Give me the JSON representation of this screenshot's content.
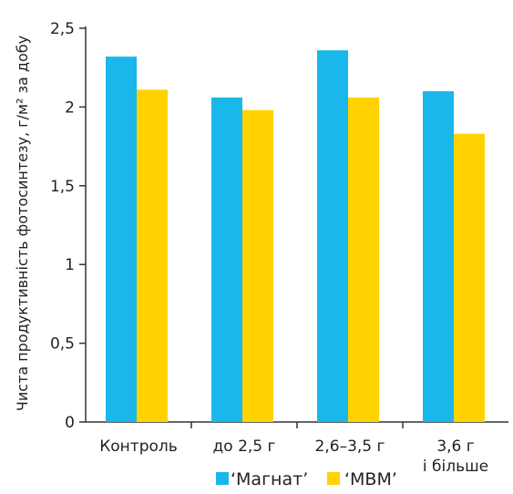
{
  "chart_data": {
    "type": "bar",
    "categories": [
      "Контроль",
      "до 2,5 г",
      "2,6–3,5 г",
      "3,6 г\nі більше"
    ],
    "series": [
      {
        "name": "‘Магнат’",
        "values": [
          2.32,
          2.06,
          2.36,
          2.1
        ],
        "color": "#1ab7ea"
      },
      {
        "name": "‘МВМ’",
        "values": [
          2.11,
          1.98,
          2.06,
          1.83
        ],
        "color": "#ffd200"
      }
    ],
    "ylabel": "Чиста продуктивність фотосинтезу, г/м² за добу",
    "xlabel": "",
    "ylim": [
      0,
      2.5
    ],
    "yticks": [
      0,
      0.5,
      1,
      1.5,
      2,
      2.5
    ],
    "ytick_labels": [
      "0",
      "0,5",
      "1",
      "1,5",
      "2",
      "2,5"
    ],
    "grid": false,
    "legend_position": "bottom"
  }
}
